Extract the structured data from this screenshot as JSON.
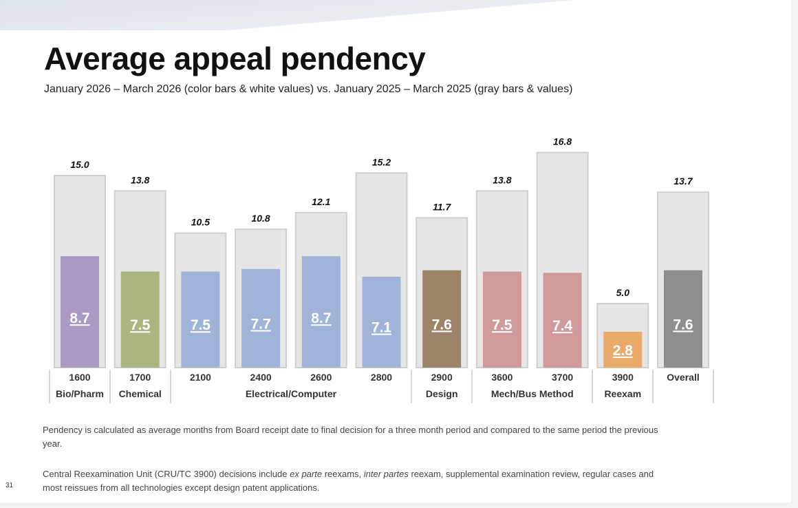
{
  "title": "Average appeal pendency",
  "subtitle": "January 2026 – March 2026 (color bars & white values) vs. January 2025 – March 2025 (gray bars & values)",
  "chart_data": {
    "type": "bar",
    "categories": [
      "1600",
      "1700",
      "2100",
      "2400",
      "2600",
      "2800",
      "2900",
      "3600",
      "3700",
      "3900",
      "Overall"
    ],
    "series": [
      {
        "name": "January 2025 – March 2025",
        "color": "#e6e6e6",
        "values": [
          15.0,
          13.8,
          10.5,
          10.8,
          12.1,
          15.2,
          11.7,
          13.8,
          16.8,
          5.0,
          13.7
        ],
        "labels": [
          "15.0",
          "13.8",
          "10.5",
          "10.8",
          "12.1",
          "15.2",
          "11.7",
          "13.8",
          "16.8",
          "5.0",
          "13.7"
        ]
      },
      {
        "name": "January 2026 – March 2026",
        "values": [
          8.7,
          7.5,
          7.5,
          7.7,
          8.7,
          7.1,
          7.6,
          7.5,
          7.4,
          2.8,
          7.6
        ],
        "labels": [
          "8.7",
          "7.5",
          "7.5",
          "7.7",
          "8.7",
          "7.1",
          "7.6",
          "7.5",
          "7.4",
          "2.8",
          "7.6"
        ],
        "colors": [
          "#a99bc4",
          "#a9b67f",
          "#9fb4d8",
          "#9fb4d8",
          "#9fb4d8",
          "#9fb4d8",
          "#9c8468",
          "#d09a9a",
          "#d09a9a",
          "#e9aa6a",
          "#8e8e8e"
        ]
      }
    ],
    "groups": [
      {
        "label": "Bio/Pharm",
        "span": [
          0,
          0
        ]
      },
      {
        "label": "Chemical",
        "span": [
          1,
          1
        ]
      },
      {
        "label": "Electrical/Computer",
        "span": [
          2,
          5
        ]
      },
      {
        "label": "Design",
        "span": [
          6,
          6
        ]
      },
      {
        "label": "Mech/Bus Method",
        "span": [
          7,
          8
        ]
      },
      {
        "label": "Reexam",
        "span": [
          9,
          9
        ]
      },
      {
        "label": "",
        "span": [
          10,
          10
        ]
      }
    ],
    "ylim": [
      0,
      17
    ],
    "grid": false
  },
  "notes": {
    "p1": "Pendency is calculated as average months from Board receipt date to final decision for a three month period and compared to the same period the previous year.",
    "p2a": "Central Reexamination Unit (CRU/TC 3900) decisions include ",
    "p2b": "ex parte",
    "p2c": " reexams, ",
    "p2d": "inter partes",
    "p2e": " reexam, supplemental examination review, regular cases and most reissues from all technologies except design patent applications."
  },
  "page_number": "31"
}
